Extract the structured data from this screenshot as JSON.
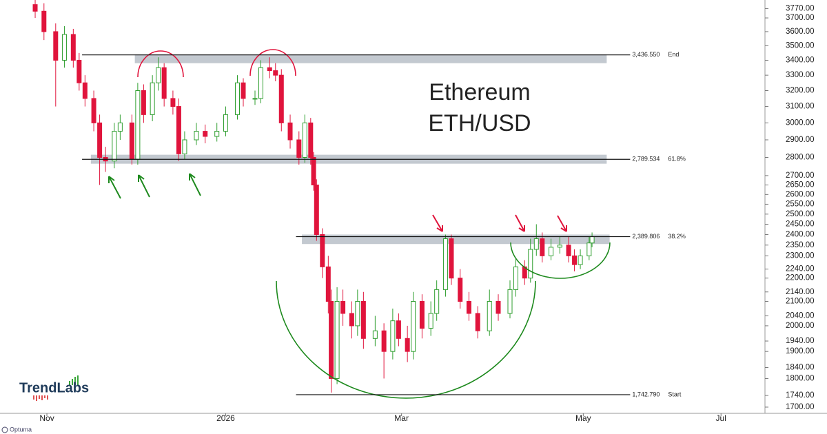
{
  "chart_data": {
    "type": "candlestick",
    "title": "Ethereum",
    "subtitle": "ETH/USD",
    "log_scale": true,
    "grid": false,
    "up_color": "#2e9e2e",
    "down_color": "#e0143c",
    "xlim": [
      -16,
      245
    ],
    "xticks": [
      {
        "value": 0,
        "label": "Nov"
      },
      {
        "value": 61,
        "label": "2026"
      },
      {
        "value": 121,
        "label": "Mar"
      },
      {
        "value": 183,
        "label": "May"
      },
      {
        "value": 230,
        "label": "Jul"
      }
    ],
    "ylim": [
      1679,
      3835
    ],
    "yticks": [
      {
        "value": 3770,
        "label": "3770.00"
      },
      {
        "value": 3700,
        "label": "3700.00"
      },
      {
        "value": 3600,
        "label": "3600.00"
      },
      {
        "value": 3500,
        "label": "3500.00"
      },
      {
        "value": 3400,
        "label": "3400.00"
      },
      {
        "value": 3300,
        "label": "3300.00"
      },
      {
        "value": 3200,
        "label": "3200.00"
      },
      {
        "value": 3100,
        "label": "3100.00"
      },
      {
        "value": 3000,
        "label": "3000.00"
      },
      {
        "value": 2900,
        "label": "2900.00"
      },
      {
        "value": 2800,
        "label": "2800.00"
      },
      {
        "value": 2700,
        "label": "2700.00"
      },
      {
        "value": 2650,
        "label": "2650.00"
      },
      {
        "value": 2600,
        "label": "2600.00"
      },
      {
        "value": 2550,
        "label": "2550.00"
      },
      {
        "value": 2500,
        "label": "2500.00"
      },
      {
        "value": 2450,
        "label": "2450.00"
      },
      {
        "value": 2400,
        "label": "2400.00"
      },
      {
        "value": 2350,
        "label": "2350.00"
      },
      {
        "value": 2300,
        "label": "2300.00"
      },
      {
        "value": 2240,
        "label": "2240.00"
      },
      {
        "value": 2200,
        "label": "2200.00"
      },
      {
        "value": 2140,
        "label": "2140.00"
      },
      {
        "value": 2100,
        "label": "2100.00"
      },
      {
        "value": 2040,
        "label": "2040.00"
      },
      {
        "value": 2000,
        "label": "2000.00"
      },
      {
        "value": 1940,
        "label": "1940.00"
      },
      {
        "value": 1900,
        "label": "1900.00"
      },
      {
        "value": 1840,
        "label": "1840.00"
      },
      {
        "value": 1800,
        "label": "1800.00"
      },
      {
        "value": 1740,
        "label": "1740.00"
      },
      {
        "value": 1700,
        "label": "1700.00"
      }
    ],
    "x": [
      -4,
      -1,
      3,
      6,
      9,
      11,
      13,
      16,
      18,
      20,
      23,
      25,
      29,
      31,
      33,
      36,
      38,
      40,
      43,
      45,
      47,
      51,
      54,
      58,
      61,
      65,
      67,
      71,
      73,
      76,
      78,
      80,
      83,
      86,
      88,
      90,
      91,
      92,
      94,
      96,
      97,
      99,
      101,
      104,
      106,
      108,
      112,
      115,
      118,
      120,
      123,
      125,
      128,
      131,
      133,
      136,
      138,
      141,
      144,
      147,
      151,
      154,
      158,
      160,
      163,
      165,
      167,
      169,
      172,
      175,
      178,
      180,
      182,
      185,
      186
    ],
    "open": [
      3800,
      3750,
      3600,
      3400,
      3580,
      3400,
      3250,
      3150,
      3000,
      2800,
      2780,
      2950,
      3000,
      2790,
      3200,
      3050,
      3250,
      3350,
      3150,
      3100,
      2820,
      2900,
      2950,
      2920,
      2950,
      3050,
      3250,
      3150,
      3150,
      3350,
      3330,
      3300,
      3000,
      2900,
      2800,
      3000,
      2800,
      2650,
      2400,
      2250,
      2100,
      1800,
      2100,
      2050,
      2000,
      2100,
      1950,
      1980,
      1900,
      2020,
      1950,
      1900,
      2100,
      1990,
      2050,
      2150,
      2380,
      2200,
      2100,
      2050,
      1980,
      2100,
      2050,
      2150,
      2250,
      2200,
      2330,
      2380,
      2300,
      2340,
      2350,
      2300,
      2260,
      2300,
      2360
    ],
    "high": [
      3850,
      3810,
      3660,
      3640,
      3620,
      3450,
      3300,
      3200,
      3050,
      2860,
      3000,
      3050,
      3050,
      3250,
      3240,
      3300,
      3420,
      3380,
      3200,
      3150,
      2950,
      3000,
      2990,
      3000,
      3100,
      3300,
      3280,
      3200,
      3400,
      3420,
      3380,
      3340,
      3050,
      2950,
      3050,
      3030,
      2830,
      2680,
      2430,
      2300,
      2150,
      2160,
      2150,
      2100,
      2150,
      2140,
      2040,
      2010,
      2070,
      2050,
      2000,
      2140,
      2130,
      2100,
      2190,
      2400,
      2400,
      2240,
      2140,
      2080,
      2150,
      2130,
      2190,
      2290,
      2280,
      2380,
      2450,
      2410,
      2380,
      2390,
      2390,
      2330,
      2330,
      2390,
      2410
    ],
    "low": [
      3700,
      3540,
      3100,
      3350,
      3350,
      3200,
      3100,
      2950,
      2650,
      2720,
      2740,
      2900,
      2760,
      2760,
      3000,
      3010,
      3200,
      3100,
      3050,
      2780,
      2790,
      2870,
      2880,
      2890,
      2920,
      3020,
      3100,
      3110,
      3120,
      3280,
      3260,
      2950,
      2850,
      2760,
      2770,
      2760,
      2620,
      2370,
      2200,
      2050,
      1750,
      1780,
      2000,
      1950,
      1960,
      1910,
      1920,
      1800,
      1870,
      1920,
      1860,
      1870,
      1950,
      1960,
      2020,
      2120,
      2170,
      2070,
      2020,
      1950,
      1960,
      2020,
      2030,
      2120,
      2170,
      2180,
      2300,
      2270,
      2280,
      2310,
      2270,
      2230,
      2240,
      2280,
      2340
    ],
    "close": [
      3750,
      3600,
      3400,
      3580,
      3400,
      3250,
      3150,
      3000,
      2800,
      2780,
      2950,
      3000,
      2790,
      3200,
      3050,
      3250,
      3350,
      3150,
      3100,
      2820,
      2900,
      2950,
      2920,
      2950,
      3050,
      3250,
      3150,
      3150,
      3350,
      3330,
      3300,
      3000,
      2900,
      2800,
      3000,
      2800,
      2650,
      2400,
      2250,
      2100,
      1800,
      2100,
      2050,
      2000,
      2100,
      1950,
      1980,
      1900,
      2020,
      1950,
      1900,
      2100,
      1990,
      2050,
      2150,
      2380,
      2200,
      2100,
      2050,
      1980,
      2100,
      2050,
      2150,
      2250,
      2200,
      2330,
      2380,
      2300,
      2340,
      2350,
      2300,
      2260,
      2300,
      2360,
      2390
    ],
    "levels": [
      {
        "value": 3436.55,
        "label": "3,436.550",
        "tag": "End",
        "from": 12,
        "to": 199
      },
      {
        "value": 2789.534,
        "label": "2,789.534",
        "tag": "61.8%",
        "from": 12,
        "to": 199
      },
      {
        "value": 2389.806,
        "label": "2,389.806",
        "tag": "38.2%",
        "from": 85,
        "to": 199
      },
      {
        "value": 1742.79,
        "label": "1,742.790",
        "tag": "Start",
        "from": 85,
        "to": 199
      }
    ],
    "zones": [
      {
        "lo": 3380,
        "hi": 3440,
        "from": 30,
        "to": 191
      },
      {
        "lo": 2765,
        "hi": 2815,
        "from": 15,
        "to": 191
      },
      {
        "lo": 2355,
        "hi": 2400,
        "from": 87,
        "to": 192
      }
    ],
    "logo": "TrendLabs",
    "footer": "Optuma"
  }
}
